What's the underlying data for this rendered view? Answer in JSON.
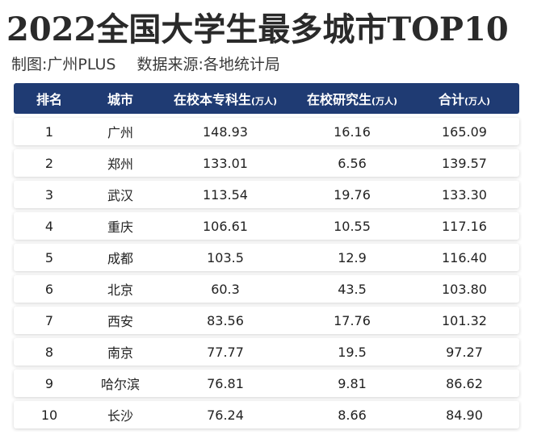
{
  "title": "2022全国大学生最多城市TOP10",
  "subtitle": {
    "maker": "制图:广州PLUS",
    "source": "数据来源:各地统计局"
  },
  "table": {
    "headers": [
      {
        "label": "排名",
        "unit": ""
      },
      {
        "label": "城市",
        "unit": ""
      },
      {
        "label": "在校本专科生",
        "unit": "(万人)"
      },
      {
        "label": "在校研究生",
        "unit": "(万人)"
      },
      {
        "label": "合计",
        "unit": "(万人)"
      }
    ],
    "rows": [
      [
        "1",
        "广州",
        "148.93",
        "16.16",
        "165.09"
      ],
      [
        "2",
        "郑州",
        "133.01",
        "6.56",
        "139.57"
      ],
      [
        "3",
        "武汉",
        "113.54",
        "19.76",
        "133.30"
      ],
      [
        "4",
        "重庆",
        "106.61",
        "10.55",
        "117.16"
      ],
      [
        "5",
        "成都",
        "103.5",
        "12.9",
        "116.40"
      ],
      [
        "6",
        "北京",
        "60.3",
        "43.5",
        "103.80"
      ],
      [
        "7",
        "西安",
        "83.56",
        "17.76",
        "101.32"
      ],
      [
        "8",
        "南京",
        "77.77",
        "19.5",
        "97.27"
      ],
      [
        "9",
        "哈尔滨",
        "76.81",
        "9.81",
        "86.62"
      ],
      [
        "10",
        "长沙",
        "76.24",
        "8.66",
        "84.90"
      ]
    ]
  },
  "colors": {
    "header_bg": "#1f3b73",
    "header_text": "#ffffff"
  }
}
